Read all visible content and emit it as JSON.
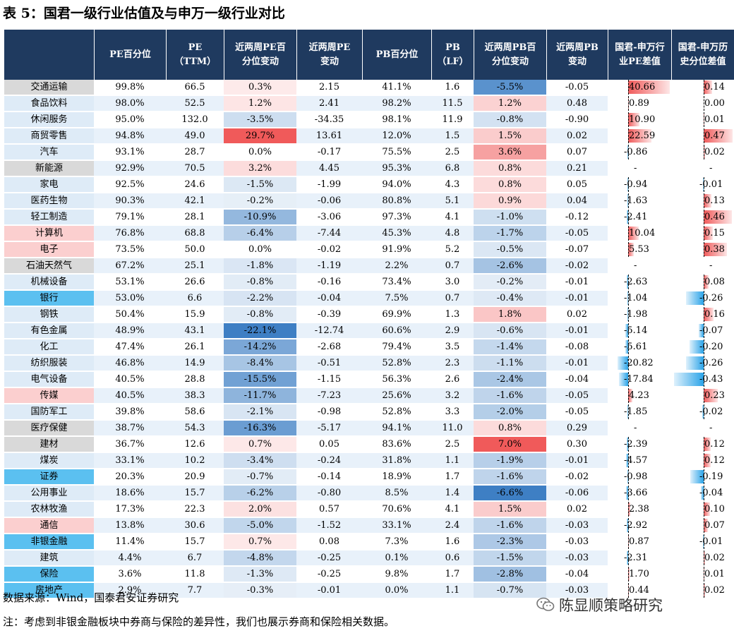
{
  "title": "表 5：国君一级行业估值及与申万一级行业对比",
  "headers": [
    "",
    "PE百分位",
    "PE\n（TTM）",
    "近两周PE百\n分位变动",
    "近两周PE\n变动",
    "PB百分位",
    "PB\n（LF）",
    "近两周PB百\n分位变动",
    "近两周PB\n变动",
    "国君-申万行\n业PE差值",
    "国君-申万历\n史分位差值"
  ],
  "rows": [
    {
      "industry": "交通运输",
      "pe_pct": "99.8%",
      "pe": "66.5",
      "pe_pct_chg": "0.3%",
      "pe_chg": "2.15",
      "pb_pct": "41.1%",
      "pb": "1.6",
      "pb_pct_chg": "-5.5%",
      "pb_chg": "-0.05",
      "pe_diff": "40.66",
      "hist_diff": "0.14"
    },
    {
      "industry": "食品饮料",
      "pe_pct": "98.0%",
      "pe": "52.5",
      "pe_pct_chg": "1.2%",
      "pe_chg": "2.41",
      "pb_pct": "98.2%",
      "pb": "11.5",
      "pb_pct_chg": "1.2%",
      "pb_chg": "0.48",
      "pe_diff": "0.89",
      "hist_diff": "0.00"
    },
    {
      "industry": "休闲服务",
      "pe_pct": "95.0%",
      "pe": "132.0",
      "pe_pct_chg": "-3.5%",
      "pe_chg": "-34.35",
      "pb_pct": "98.1%",
      "pb": "11.9",
      "pb_pct_chg": "-0.8%",
      "pb_chg": "-0.90",
      "pe_diff": "10.90",
      "hist_diff": "0.01"
    },
    {
      "industry": "商贸零售",
      "pe_pct": "94.8%",
      "pe": "49.0",
      "pe_pct_chg": "29.7%",
      "pe_chg": "13.61",
      "pb_pct": "12.0%",
      "pb": "1.5",
      "pb_pct_chg": "1.5%",
      "pb_chg": "0.02",
      "pe_diff": "22.59",
      "hist_diff": "0.47"
    },
    {
      "industry": "汽车",
      "pe_pct": "93.1%",
      "pe": "28.7",
      "pe_pct_chg": "0.0%",
      "pe_chg": "-0.17",
      "pb_pct": "75.5%",
      "pb": "2.5",
      "pb_pct_chg": "3.6%",
      "pb_chg": "0.07",
      "pe_diff": "-0.86",
      "hist_diff": "0.02"
    },
    {
      "industry": "新能源",
      "pe_pct": "92.9%",
      "pe": "70.5",
      "pe_pct_chg": "3.2%",
      "pe_chg": "4.45",
      "pb_pct": "95.3%",
      "pb": "6.8",
      "pb_pct_chg": "0.8%",
      "pb_chg": "0.21",
      "pe_diff": "-",
      "hist_diff": "-"
    },
    {
      "industry": "家电",
      "pe_pct": "92.5%",
      "pe": "24.6",
      "pe_pct_chg": "-1.5%",
      "pe_chg": "-1.99",
      "pb_pct": "94.0%",
      "pb": "4.3",
      "pb_pct_chg": "0.8%",
      "pb_chg": "0.05",
      "pe_diff": "-0.94",
      "hist_diff": "-0.01"
    },
    {
      "industry": "医药生物",
      "pe_pct": "90.3%",
      "pe": "42.1",
      "pe_pct_chg": "-0.2%",
      "pe_chg": "-0.06",
      "pb_pct": "80.8%",
      "pb": "5.1",
      "pb_pct_chg": "0.9%",
      "pb_chg": "0.04",
      "pe_diff": "-1.63",
      "hist_diff": "0.13"
    },
    {
      "industry": "轻工制造",
      "pe_pct": "79.1%",
      "pe": "28.1",
      "pe_pct_chg": "-10.9%",
      "pe_chg": "-3.06",
      "pb_pct": "97.3%",
      "pb": "4.1",
      "pb_pct_chg": "-1.0%",
      "pb_chg": "-0.12",
      "pe_diff": "-2.41",
      "hist_diff": "0.46"
    },
    {
      "industry": "计算机",
      "pe_pct": "76.8%",
      "pe": "68.8",
      "pe_pct_chg": "-6.4%",
      "pe_chg": "-7.44",
      "pb_pct": "45.3%",
      "pb": "4.8",
      "pb_pct_chg": "-1.7%",
      "pb_chg": "-0.05",
      "pe_diff": "10.04",
      "hist_diff": "0.15"
    },
    {
      "industry": "电子",
      "pe_pct": "73.5%",
      "pe": "50.0",
      "pe_pct_chg": "0.0%",
      "pe_chg": "-0.02",
      "pb_pct": "91.9%",
      "pb": "5.2",
      "pb_pct_chg": "-0.5%",
      "pb_chg": "-0.07",
      "pe_diff": "5.53",
      "hist_diff": "0.38"
    },
    {
      "industry": "石油天然气",
      "pe_pct": "67.2%",
      "pe": "25.1",
      "pe_pct_chg": "-1.8%",
      "pe_chg": "-1.19",
      "pb_pct": "2.2%",
      "pb": "0.7",
      "pb_pct_chg": "-2.6%",
      "pb_chg": "-0.02",
      "pe_diff": "-",
      "hist_diff": "-"
    },
    {
      "industry": "机械设备",
      "pe_pct": "53.1%",
      "pe": "26.6",
      "pe_pct_chg": "-0.8%",
      "pe_chg": "-0.16",
      "pb_pct": "73.4%",
      "pb": "3.0",
      "pb_pct_chg": "-0.2%",
      "pb_chg": "-0.01",
      "pe_diff": "-2.63",
      "hist_diff": "0.08"
    },
    {
      "industry": "银行",
      "pe_pct": "53.0%",
      "pe": "6.6",
      "pe_pct_chg": "-2.2%",
      "pe_chg": "-0.04",
      "pb_pct": "7.5%",
      "pb": "0.7",
      "pb_pct_chg": "-0.4%",
      "pb_chg": "-0.01",
      "pe_diff": "-1.04",
      "hist_diff": "-0.26"
    },
    {
      "industry": "钢铁",
      "pe_pct": "50.4%",
      "pe": "15.9",
      "pe_pct_chg": "-0.8%",
      "pe_chg": "-0.39",
      "pb_pct": "69.9%",
      "pb": "1.3",
      "pb_pct_chg": "1.8%",
      "pb_chg": "0.02",
      "pe_diff": "-1.98",
      "hist_diff": "0.16"
    },
    {
      "industry": "有色金属",
      "pe_pct": "48.9%",
      "pe": "43.1",
      "pe_pct_chg": "-22.1%",
      "pe_chg": "-12.74",
      "pb_pct": "60.6%",
      "pb": "2.9",
      "pb_pct_chg": "-0.6%",
      "pb_chg": "-0.01",
      "pe_diff": "-5.14",
      "hist_diff": "-0.07"
    },
    {
      "industry": "化工",
      "pe_pct": "47.4%",
      "pe": "26.1",
      "pe_pct_chg": "-14.2%",
      "pe_chg": "-2.68",
      "pb_pct": "79.4%",
      "pb": "3.5",
      "pb_pct_chg": "-1.4%",
      "pb_chg": "-0.08",
      "pe_diff": "-5.61",
      "hist_diff": "-0.20"
    },
    {
      "industry": "纺织服装",
      "pe_pct": "46.8%",
      "pe": "14.9",
      "pe_pct_chg": "-8.4%",
      "pe_chg": "-0.51",
      "pb_pct": "52.8%",
      "pb": "2.3",
      "pb_pct_chg": "-1.1%",
      "pb_chg": "-0.01",
      "pe_diff": "-20.82",
      "hist_diff": "-0.26"
    },
    {
      "industry": "电气设备",
      "pe_pct": "40.5%",
      "pe": "28.8",
      "pe_pct_chg": "-15.5%",
      "pe_chg": "-1.15",
      "pb_pct": "56.3%",
      "pb": "2.6",
      "pb_pct_chg": "-2.4%",
      "pb_chg": "-0.04",
      "pe_diff": "-17.84",
      "hist_diff": "-0.43"
    },
    {
      "industry": "传媒",
      "pe_pct": "40.5%",
      "pe": "38.3",
      "pe_pct_chg": "-11.7%",
      "pe_chg": "-7.23",
      "pb_pct": "25.6%",
      "pb": "3.2",
      "pb_pct_chg": "-1.6%",
      "pb_chg": "-0.05",
      "pe_diff": "4.23",
      "hist_diff": "0.23"
    },
    {
      "industry": "国防军工",
      "pe_pct": "39.8%",
      "pe": "58.6",
      "pe_pct_chg": "-2.1%",
      "pe_chg": "-0.98",
      "pb_pct": "52.8%",
      "pb": "3.3",
      "pb_pct_chg": "-2.0%",
      "pb_chg": "-0.05",
      "pe_diff": "-1.85",
      "hist_diff": "-0.02"
    },
    {
      "industry": "医疗保健",
      "pe_pct": "38.7%",
      "pe": "54.3",
      "pe_pct_chg": "-16.3%",
      "pe_chg": "-5.17",
      "pb_pct": "94.1%",
      "pb": "11.0",
      "pb_pct_chg": "0.8%",
      "pb_chg": "0.29",
      "pe_diff": "-",
      "hist_diff": "-"
    },
    {
      "industry": "建材",
      "pe_pct": "36.7%",
      "pe": "12.6",
      "pe_pct_chg": "0.7%",
      "pe_chg": "0.05",
      "pb_pct": "83.6%",
      "pb": "2.5",
      "pb_pct_chg": "7.0%",
      "pb_chg": "0.30",
      "pe_diff": "-2.39",
      "hist_diff": "0.12"
    },
    {
      "industry": "煤炭",
      "pe_pct": "33.1%",
      "pe": "10.2",
      "pe_pct_chg": "-3.4%",
      "pe_chg": "-0.24",
      "pb_pct": "31.8%",
      "pb": "1.1",
      "pb_pct_chg": "-1.9%",
      "pb_chg": "-0.01",
      "pe_diff": "-4.57",
      "hist_diff": "0.12"
    },
    {
      "industry": "证券",
      "pe_pct": "20.3%",
      "pe": "20.9",
      "pe_pct_chg": "-0.7%",
      "pe_chg": "-0.14",
      "pb_pct": "18.9%",
      "pb": "1.7",
      "pb_pct_chg": "-1.6%",
      "pb_chg": "-0.02",
      "pe_diff": "-0.98",
      "hist_diff": "-0.19"
    },
    {
      "industry": "公用事业",
      "pe_pct": "18.6%",
      "pe": "15.7",
      "pe_pct_chg": "-6.2%",
      "pe_chg": "-0.80",
      "pb_pct": "8.5%",
      "pb": "1.4",
      "pb_pct_chg": "-6.6%",
      "pb_chg": "-0.06",
      "pe_diff": "-3.66",
      "hist_diff": "-0.04"
    },
    {
      "industry": "农林牧渔",
      "pe_pct": "17.3%",
      "pe": "22.3",
      "pe_pct_chg": "2.0%",
      "pe_chg": "0.57",
      "pb_pct": "70.6%",
      "pb": "4.1",
      "pb_pct_chg": "1.5%",
      "pb_chg": "0.02",
      "pe_diff": "2.38",
      "hist_diff": "0.10"
    },
    {
      "industry": "通信",
      "pe_pct": "13.8%",
      "pe": "30.6",
      "pe_pct_chg": "-5.0%",
      "pe_chg": "-1.52",
      "pb_pct": "33.1%",
      "pb": "2.4",
      "pb_pct_chg": "-1.6%",
      "pb_chg": "-0.03",
      "pe_diff": "-2.92",
      "hist_diff": "0.07"
    },
    {
      "industry": "非银金融",
      "pe_pct": "11.4%",
      "pe": "15.7",
      "pe_pct_chg": "0.7%",
      "pe_chg": "0.08",
      "pb_pct": "7.3%",
      "pb": "1.6",
      "pb_pct_chg": "-2.3%",
      "pb_chg": "-0.03",
      "pe_diff": "0.87",
      "hist_diff": "-0.01"
    },
    {
      "industry": "建筑",
      "pe_pct": "4.4%",
      "pe": "6.7",
      "pe_pct_chg": "-4.8%",
      "pe_chg": "-0.25",
      "pb_pct": "0.1%",
      "pb": "0.6",
      "pb_pct_chg": "-1.5%",
      "pb_chg": "-0.03",
      "pe_diff": "-2.31",
      "hist_diff": "0.02"
    },
    {
      "industry": "保险",
      "pe_pct": "3.6%",
      "pe": "11.8",
      "pe_pct_chg": "-1.3%",
      "pe_chg": "-0.25",
      "pb_pct": "9.8%",
      "pb": "1.7",
      "pb_pct_chg": "-2.8%",
      "pb_chg": "-0.04",
      "pe_diff": "1.70",
      "hist_diff": "0.01"
    },
    {
      "industry": "房地产",
      "pe_pct": "2.9%",
      "pe": "7.7",
      "pe_pct_chg": "-0.3%",
      "pe_chg": "-0.01",
      "pb_pct": "0.0%",
      "pb": "1.1",
      "pb_pct_chg": "-0.7%",
      "pb_chg": "-0.03",
      "pe_diff": "0.44",
      "hist_diff": "0.02"
    }
  ],
  "industry_colors": {
    "交通运输": "#d9d9d9",
    "食品饮料": "#deebf7",
    "休闲服务": "#deebf7",
    "商贸零售": "#deebf7",
    "汽车": "#deebf7",
    "新能源": "#d9d9d9",
    "家电": "#deebf7",
    "医药生物": "#deebf7",
    "轻工制造": "#deebf7",
    "计算机": "#fbcfcf",
    "电子": "#fbcfcf",
    "石油天然气": "#d9d9d9",
    "机械设备": "#deebf7",
    "银行": "#5bc0f0",
    "钢铁": "#deebf7",
    "有色金属": "#deebf7",
    "化工": "#deebf7",
    "纺织服装": "#deebf7",
    "电气设备": "#deebf7",
    "传媒": "#fbcfcf",
    "国防军工": "#deebf7",
    "医疗保健": "#d9d9d9",
    "建材": "#d9d9d9",
    "煤炭": "#deebf7",
    "证券": "#5bc0f0",
    "公用事业": "#deebf7",
    "农林牧渔": "#deebf7",
    "通信": "#fbcfcf",
    "非银金融": "#5bc0f0",
    "建筑": "#deebf7",
    "保险": "#5bc0f0",
    "房地产": "#5bc0f0"
  },
  "colors": {
    "header_bg": "#1f3a5f",
    "row_stripe": "#e8f1fa",
    "pos_scale": "#f05a5a",
    "neg_scale": "#3e7fc4",
    "bar_pos": "#f05a5a",
    "bar_neg": "#2aa3e8"
  },
  "source": "数据来源：Wind，国泰君安证券研究",
  "note": "注：考虑到非银金融板块中券商与保险的差异性，我们也展示券商和保险相关数据。",
  "watermark": "陈显顺策略研究",
  "watermark_icon": "wechat-icon"
}
